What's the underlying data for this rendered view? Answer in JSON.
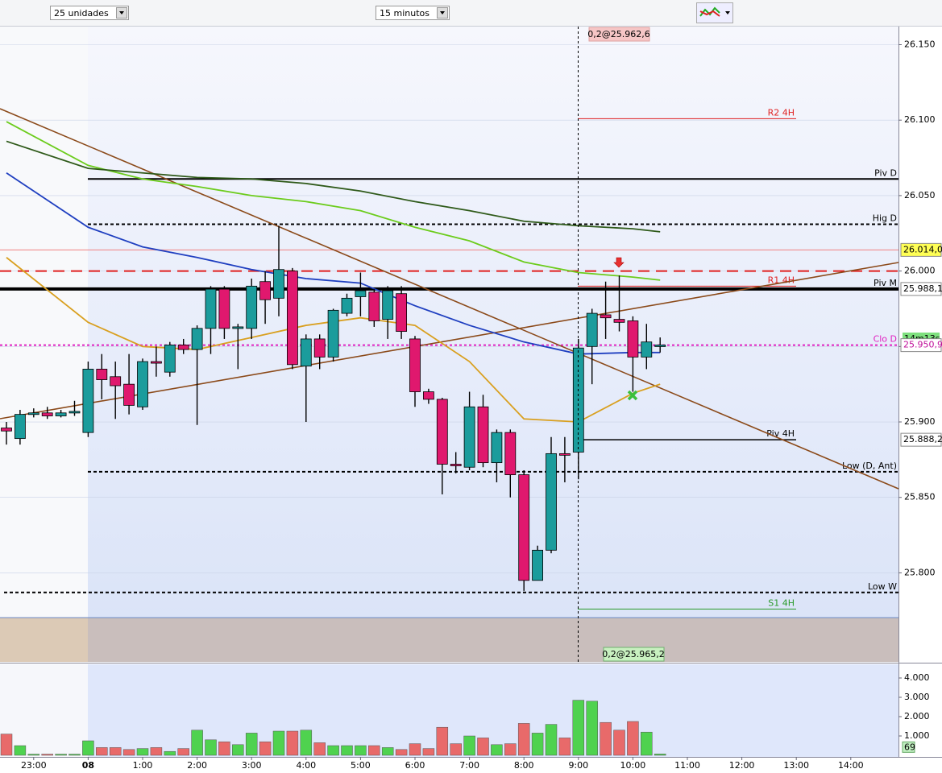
{
  "toolbar": {
    "units": "25 unidades",
    "interval": "15 minutos"
  },
  "chart_data": {
    "type": "candlestick",
    "candles": {
      "open": [
        25.896,
        25.889,
        25.905,
        25.906,
        25.904,
        25.906,
        25.893,
        25.935,
        25.93,
        25.925,
        25.91,
        25.94,
        25.933,
        25.951,
        25.948,
        25.962,
        25.988,
        25.962,
        25.962,
        25.993,
        25.982,
        26.0,
        25.937,
        25.955,
        25.943,
        25.972,
        25.983,
        25.986,
        25.968,
        25.985,
        25.955,
        25.92,
        25.915,
        25.872,
        25.87,
        25.91,
        25.873,
        25.893,
        25.865,
        25.795,
        25.815,
        25.879,
        25.88,
        25.95,
        25.971,
        25.968,
        25.967,
        25.943,
        25.951
      ],
      "high": [
        25.9,
        25.908,
        25.909,
        25.91,
        25.908,
        25.914,
        25.94,
        25.945,
        25.94,
        25.945,
        25.942,
        25.95,
        25.953,
        25.955,
        25.964,
        25.99,
        25.99,
        25.965,
        25.995,
        26.0,
        26.03,
        26.002,
        25.958,
        25.958,
        25.975,
        25.985,
        25.999,
        25.988,
        25.99,
        25.99,
        25.957,
        25.922,
        25.916,
        25.88,
        25.92,
        25.918,
        25.895,
        25.895,
        25.868,
        25.818,
        25.89,
        25.89,
        25.955,
        25.975,
        25.993,
        25.997,
        25.97,
        25.965,
        25.956
      ],
      "low": [
        25.885,
        25.885,
        25.903,
        25.902,
        25.903,
        25.904,
        25.89,
        25.915,
        25.902,
        25.905,
        25.908,
        25.93,
        25.93,
        25.945,
        25.898,
        25.945,
        25.955,
        25.935,
        25.955,
        25.965,
        25.97,
        25.935,
        25.9,
        25.935,
        25.94,
        25.97,
        25.97,
        25.963,
        25.955,
        25.955,
        25.91,
        25.912,
        25.852,
        25.866,
        25.868,
        25.87,
        25.86,
        25.85,
        25.788,
        25.795,
        25.813,
        25.86,
        25.862,
        25.925,
        25.955,
        25.96,
        25.92,
        25.935,
        25.946
      ],
      "close": [
        25.894,
        25.905,
        25.906,
        25.904,
        25.906,
        25.907,
        25.935,
        25.928,
        25.924,
        25.911,
        25.94,
        25.939,
        25.951,
        25.948,
        25.962,
        25.988,
        25.962,
        25.963,
        25.99,
        25.981,
        26.001,
        25.938,
        25.955,
        25.943,
        25.974,
        25.982,
        25.987,
        25.967,
        25.987,
        25.96,
        25.92,
        25.915,
        25.872,
        25.871,
        25.91,
        25.873,
        25.893,
        25.865,
        25.795,
        25.815,
        25.879,
        25.878,
        25.949,
        25.972,
        25.969,
        25.966,
        25.943,
        25.953,
        25.951
      ]
    },
    "volume": {
      "values": [
        1100,
        500,
        60,
        60,
        60,
        60,
        750,
        400,
        400,
        300,
        350,
        400,
        200,
        350,
        1300,
        800,
        700,
        550,
        1150,
        700,
        1250,
        1250,
        1300,
        650,
        500,
        500,
        500,
        500,
        400,
        300,
        600,
        350,
        1450,
        600,
        1000,
        900,
        550,
        600,
        1650,
        1150,
        1600,
        900,
        2850,
        2800,
        1700,
        1300,
        1750,
        1200,
        69
      ],
      "value_labels": {
        "48": "69"
      },
      "ylim": [
        0,
        4708
      ],
      "yticks": [
        {
          "value": 1000,
          "label": "1.000"
        },
        {
          "value": 2000,
          "label": "2.000"
        },
        {
          "value": 3000,
          "label": "3.000"
        },
        {
          "value": 4000,
          "label": "4.000"
        }
      ],
      "up_color": "#4fd24f",
      "down_color": "#e86a6a"
    },
    "up_color": "#1b9c9c",
    "down_color": "#e0186e",
    "ylim": [
      25.741,
      26.162
    ],
    "yticks": [
      {
        "value": 25.8,
        "label": "25.800"
      },
      {
        "value": 25.85,
        "label": "25.850"
      },
      {
        "value": 25.9,
        "label": "25.900"
      },
      {
        "value": 25.95,
        "label": "25.950"
      },
      {
        "value": 26.0,
        "label": "26.000"
      },
      {
        "value": 26.05,
        "label": "26.050"
      },
      {
        "value": 26.1,
        "label": "26.100"
      },
      {
        "value": 26.15,
        "label": "26.150"
      }
    ],
    "xticks": [
      "23:00",
      "08",
      "1:00",
      "2:00",
      "3:00",
      "4:00",
      "5:00",
      "6:00",
      "7:00",
      "8:00",
      "9:00",
      "10:00",
      "11:00",
      "12:00",
      "13:00",
      "14:00"
    ],
    "grid": true,
    "series": [
      {
        "color": "#1f3fc0",
        "x": [
          0,
          6,
          10,
          14,
          18,
          22,
          26,
          30,
          34,
          38,
          42,
          46,
          48
        ],
        "values": [
          26.065,
          26.029,
          26.016,
          26.009,
          26.001,
          25.995,
          25.992,
          25.977,
          25.964,
          25.953,
          25.945,
          25.946,
          25.946
        ]
      },
      {
        "color": "#6ccc1c",
        "x": [
          0,
          6,
          10,
          14,
          18,
          22,
          26,
          30,
          34,
          38,
          42,
          46,
          48
        ],
        "values": [
          26.099,
          26.07,
          26.061,
          26.056,
          26.05,
          26.046,
          26.04,
          26.029,
          26.02,
          26.006,
          25.999,
          25.996,
          25.994
        ]
      },
      {
        "color": "#2f5a1a",
        "x": [
          0,
          6,
          10,
          14,
          18,
          22,
          26,
          30,
          34,
          38,
          42,
          46,
          48
        ],
        "values": [
          26.086,
          26.068,
          26.065,
          26.062,
          26.061,
          26.058,
          26.053,
          26.046,
          26.04,
          26.033,
          26.03,
          26.028,
          26.026
        ]
      },
      {
        "color": "#d9a020",
        "x": [
          0,
          6,
          10,
          14,
          18,
          22,
          26,
          30,
          34,
          38,
          42,
          46,
          48
        ],
        "values": [
          26.009,
          25.966,
          25.95,
          25.948,
          25.956,
          25.964,
          25.969,
          25.964,
          25.94,
          25.902,
          25.9,
          25.919,
          25.925
        ]
      }
    ],
    "levels": [
      {
        "label": "Piv D",
        "value": 26.061,
        "color": "#000000",
        "dash": "solid"
      },
      {
        "label": "Hig D",
        "value": 26.031,
        "color": "#000000",
        "dash": "dashed"
      },
      {
        "value": 26.014,
        "color": "#f08080",
        "dash": "solid",
        "tag": "26.014,0",
        "tag_color": "#ffff55"
      },
      {
        "value": 26.0,
        "color": "#e02020",
        "dash": "long-dashed"
      },
      {
        "label": "Piv M",
        "value": 25.9881,
        "color": "#000000",
        "dash": "solid",
        "tag": "25.988,1",
        "tag_color": "#ffffff"
      },
      {
        "label": "Clo D",
        "value": 25.9509,
        "color": "#e020c0",
        "dash": "dotted",
        "tag": "25.950,9",
        "tag_color": "#ffffff"
      },
      {
        "label": "Low (D, Ant)",
        "value": 25.867,
        "color": "#000000",
        "dash": "dashed"
      },
      {
        "label": "Low W",
        "value": 25.787,
        "color": "#000000",
        "dash": "dashed"
      },
      {
        "label": "R2 4H",
        "value": 26.101,
        "color": "#e02020",
        "dash": "solid"
      },
      {
        "label": "R1 4H",
        "value": 25.99,
        "color": "#e02020",
        "dash": "solid"
      },
      {
        "label": "Piv 4H",
        "value": 25.8882,
        "color": "#000000",
        "dash": "solid",
        "tag": "25.888,2",
        "tag_color": "#ffffff"
      },
      {
        "label": "S1 4H",
        "value": 25.776,
        "color": "#2a9a2a",
        "dash": "solid"
      }
    ],
    "countdown": "14m13s",
    "crosshair": {
      "top": "0,2@25.962,6",
      "bottom": "0,2@25.965,2"
    }
  }
}
